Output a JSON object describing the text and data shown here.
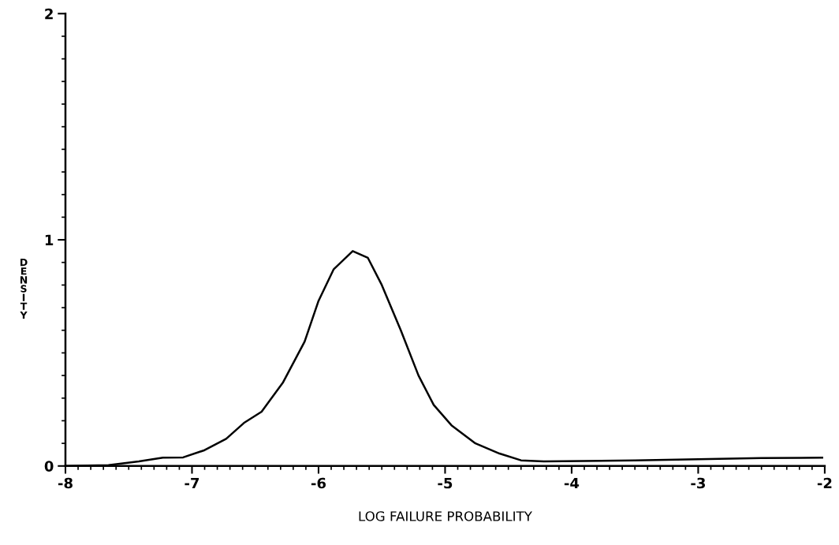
{
  "chart_data": {
    "type": "line",
    "xlabel": "LOG FAILURE PROBABILITY",
    "ylabel": "DENSITY",
    "x": [
      -7.99,
      -7.66,
      -7.42,
      -7.23,
      -7.07,
      -6.9,
      -6.73,
      -6.59,
      -6.45,
      -6.28,
      -6.11,
      -6.0,
      -5.88,
      -5.73,
      -5.61,
      -5.5,
      -5.35,
      -5.21,
      -5.09,
      -4.95,
      -4.76,
      -4.57,
      -4.4,
      -4.22,
      -3.5,
      -3.0,
      -2.5,
      -2.02
    ],
    "series": [
      {
        "color": "#000000",
        "values": [
          0.0,
          0.004,
          0.02,
          0.037,
          0.038,
          0.07,
          0.12,
          0.19,
          0.24,
          0.37,
          0.55,
          0.73,
          0.87,
          0.95,
          0.92,
          0.8,
          0.6,
          0.4,
          0.27,
          0.18,
          0.1,
          0.055,
          0.025,
          0.02,
          0.025,
          0.03,
          0.035,
          0.037
        ]
      }
    ],
    "xlim": [
      -8,
      -2
    ],
    "xticks": [
      -8,
      -7,
      -6,
      -5,
      -4,
      -3,
      -2
    ],
    "ylim": [
      0,
      2
    ],
    "yticks": [
      0,
      1,
      2
    ],
    "grid": false,
    "legend": false,
    "marker": "none",
    "line_style": "solid"
  }
}
